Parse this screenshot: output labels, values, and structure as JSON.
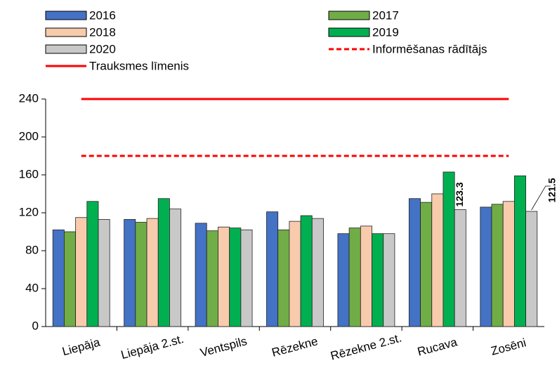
{
  "chart_data": {
    "type": "bar",
    "categories": [
      "Liepāja",
      "Liepāja 2.st.",
      "Ventspils",
      "Rēzekne",
      "Rēzekne 2.st.",
      "Rucava",
      "Zosēni"
    ],
    "series": [
      {
        "name": "2016",
        "color": "#4472c4",
        "values": [
          102,
          113,
          109,
          121,
          98,
          135,
          126
        ]
      },
      {
        "name": "2017",
        "color": "#70ad47",
        "values": [
          100,
          110,
          101,
          102,
          104,
          131,
          129
        ]
      },
      {
        "name": "2018",
        "color": "#f8cbad",
        "values": [
          115,
          114,
          105,
          111,
          106,
          140,
          132
        ]
      },
      {
        "name": "2019",
        "color": "#00b050",
        "values": [
          132,
          135,
          104,
          117,
          98,
          163,
          159
        ]
      },
      {
        "name": "2020",
        "color": "#c8c8c8",
        "values": [
          113,
          124,
          102,
          114,
          98,
          123.3,
          121.5
        ],
        "value_labels": [
          null,
          null,
          null,
          null,
          null,
          "123.3",
          "121.5"
        ]
      }
    ],
    "reference_lines": [
      {
        "name": "Informēšanas rādītājs",
        "value": 180,
        "color": "#ff0000",
        "dashed": true
      },
      {
        "name": "Trauksmes līmenis",
        "value": 240,
        "color": "#ff0000",
        "dashed": false
      }
    ],
    "ylim": [
      0,
      240
    ],
    "yticks": [
      0,
      40,
      80,
      120,
      160,
      200,
      240
    ],
    "grid": false
  }
}
